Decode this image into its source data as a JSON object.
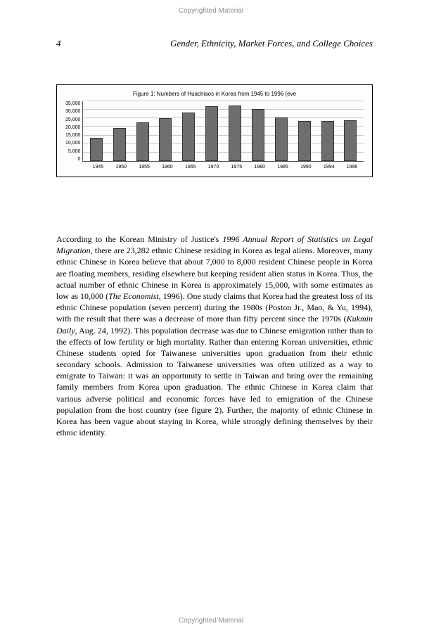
{
  "copyright_text": "Copyrighted Material",
  "header": {
    "page_number": "4",
    "running_title": "Gender, Ethnicity, Market Forces, and College Choices"
  },
  "figure": {
    "type": "bar",
    "title": "Figure 1:  Numbers of Huachiaos in Korea from 1945 to 1996 (eve",
    "categories": [
      "1945",
      "1950",
      "1955",
      "1960",
      "1965",
      "1970",
      "1975",
      "1980",
      "1985",
      "1990",
      "1994",
      "1996"
    ],
    "values": [
      13500,
      19500,
      22500,
      25000,
      28500,
      32000,
      32500,
      30500,
      25500,
      23500,
      23500,
      24000
    ],
    "bar_color": "#6e6e6e",
    "bar_border": "#333333",
    "grid_color": "#c9c9c9",
    "background_color": "#fdfdfd",
    "ylim": [
      0,
      35000
    ],
    "ytick_step": 5000,
    "y_ticks": [
      "35,000",
      "30,000",
      "25,000",
      "20,000",
      "15,000",
      "10,000",
      "5,000",
      "0"
    ],
    "title_fontsize": 8,
    "label_fontsize": 7
  },
  "paragraph": {
    "p1a": "According to the Korean Ministry of Justice's ",
    "p1_it1": "1996 Annual Report of Statistics on Legal Migration",
    "p1b": ", there are 23,282 ethnic Chinese residing in Korea as legal aliens. Moreover, many ethnic Chinese in Korea believe that about 7,000 to 8,000 resident Chinese people in Korea are floating members, residing elsewhere but keeping resident alien status in Korea. Thus, the actual number of ethnic Chinese in Korea is approximately 15,000, with some estimates as low as 10,000 (",
    "p1_it2": "The Economist",
    "p1c": ", 1996). One study claims that Korea had the greatest loss of its ethnic Chinese population (seven percent) during the 1980s (Poston Jr., Mao, & Yu, 1994), with the result that there was a decrease of more than fifty percent since the 1970s (",
    "p1_it3": "Kukmin Daily",
    "p1d": ", Aug. 24, 1992). This population decrease was due to Chinese emigration rather than to the effects of low fertility or high mortality. Rather than entering Korean universities, ethnic Chinese students opted for Taiwanese universities upon graduation from their ethnic secondary schools. Admission to Taiwanese universities was often utilized as a way to emigrate to Taiwan: it was an opportunity to settle in Taiwan and bring over the remaining family members from Korea upon graduation. The ethnic Chinese in Korea claim that various adverse political and economic forces have led to emigration of the Chinese population from the host country (see figure 2). Further, the majority of ethnic Chinese in Korea has been vague about staying in Korea, while strongly defining them­selves by their ethnic identity."
  }
}
